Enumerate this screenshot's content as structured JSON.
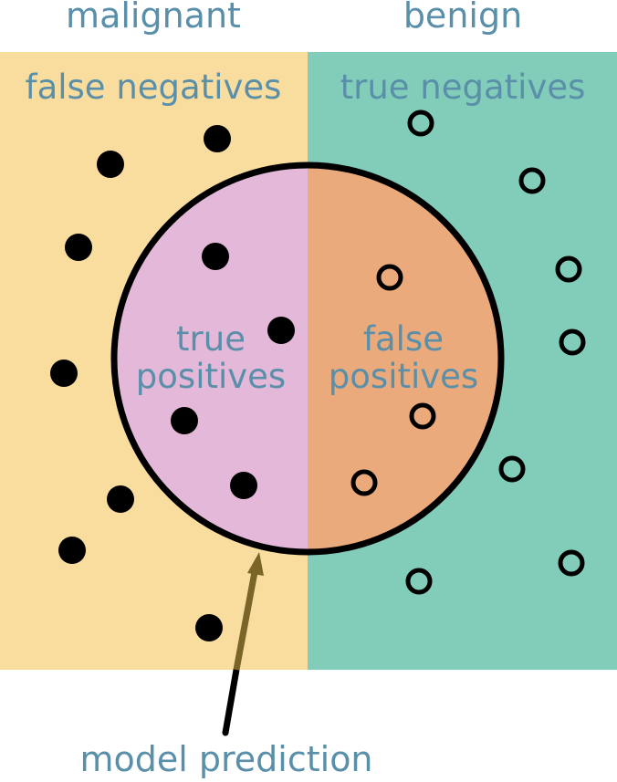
{
  "headers": {
    "left": "malignant",
    "right": "benign"
  },
  "regions": {
    "false_negatives": "false negatives",
    "true_negatives": "true negatives",
    "true_positives_line1": "true",
    "true_positives_line2": "positives",
    "false_positives_line1": "false",
    "false_positives_line2": "positives"
  },
  "caption": "model prediction",
  "colors": {
    "malignant_bg": "#f9dd9f",
    "benign_bg": "#82cdb9",
    "true_positive_fill": "#e3b8d8",
    "false_positive_fill": "#eaaa7b",
    "label_text": "#5a8faa",
    "arrow": "#7a6428"
  },
  "legend_symbols": {
    "malignant_sample": "filled-dot",
    "benign_sample": "hollow-ring"
  }
}
